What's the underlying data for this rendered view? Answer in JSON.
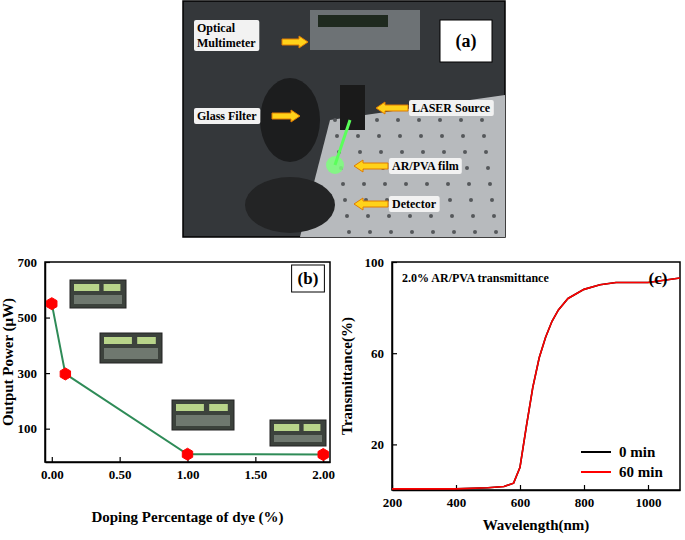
{
  "photo": {
    "panel_label": "(a)",
    "labels": [
      {
        "lines": [
          "Optical",
          "Multimeter"
        ]
      },
      {
        "lines": [
          "Glass Filter"
        ]
      },
      {
        "lines": [
          "LASER Source"
        ]
      },
      {
        "lines": [
          "AR/PVA film"
        ]
      },
      {
        "lines": [
          "Detector"
        ]
      }
    ]
  },
  "chart_data": [
    {
      "type": "line",
      "panel_label": "(b)",
      "x_label": "Doping Percentage of dye (%)",
      "y_label": "Output Power (μW)",
      "x": [
        0,
        0.1,
        1.0,
        2.0
      ],
      "series": [
        {
          "values": [
            550,
            297,
            8,
            7
          ],
          "color": "#2e8b57",
          "colors": [
            "#ff0000",
            "#ff0000",
            "#ff0000",
            "#ff0000"
          ],
          "marker": "hexagon",
          "line_style": "solid"
        }
      ],
      "xlim": [
        -0.05,
        2.05
      ],
      "xticks": [
        {
          "value": 0,
          "label": "0.00"
        },
        {
          "value": 0.5,
          "label": "0.50"
        },
        {
          "value": 1.0,
          "label": "1.00"
        },
        {
          "value": 1.5,
          "label": "1.50"
        },
        {
          "value": 2.0,
          "label": "2.00"
        }
      ],
      "ylim": [
        -20,
        700
      ],
      "yticks": [
        100,
        300,
        500,
        700
      ],
      "grid": false
    },
    {
      "type": "line",
      "panel_label": "(c)",
      "title": "2.0% AR/PVA transmittance",
      "x_label": "Wavelength(nm)",
      "y_label": "Transmittance(%)",
      "x": [
        200,
        300,
        400,
        500,
        550,
        580,
        600,
        620,
        640,
        660,
        680,
        700,
        720,
        750,
        800,
        850,
        900,
        950,
        1000,
        1050,
        1100
      ],
      "series": [
        {
          "name": "0 min",
          "color": "#000000",
          "line_style": "solid",
          "values": [
            0.5,
            0.5,
            0.5,
            1,
            1.5,
            3,
            10,
            28,
            45,
            58,
            67,
            74,
            79,
            84,
            88,
            90,
            91,
            91,
            91,
            92,
            93
          ]
        },
        {
          "name": "60 min",
          "color": "#ff0000",
          "line_style": "solid",
          "values": [
            0.5,
            0.5,
            0.5,
            1,
            1.5,
            3,
            10,
            28,
            45,
            58,
            67,
            74,
            79,
            84,
            88,
            90,
            91,
            91,
            91,
            92,
            93
          ]
        }
      ],
      "xlim": [
        200,
        1100
      ],
      "xticks": [
        200,
        400,
        600,
        800,
        1000
      ],
      "ylim": [
        0,
        100
      ],
      "yticks": [
        20,
        60,
        100
      ],
      "legend": "lower right",
      "grid": false
    }
  ]
}
